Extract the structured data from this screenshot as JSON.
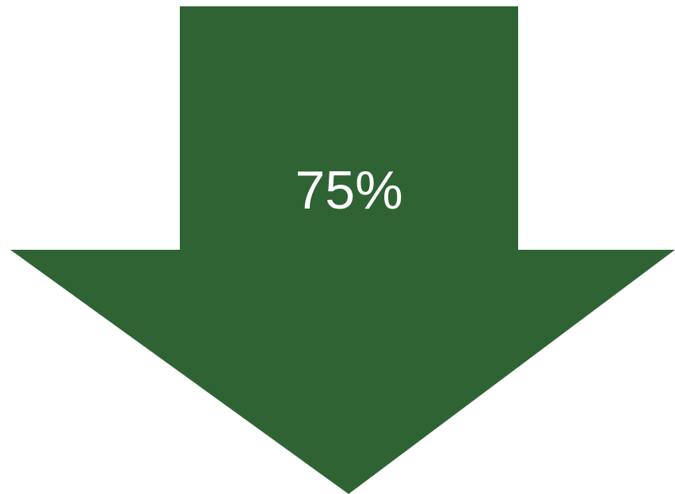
{
  "arrow": {
    "label": "75%",
    "fill_color": "#2f6333",
    "text_color": "#ffffff",
    "direction": "down"
  }
}
